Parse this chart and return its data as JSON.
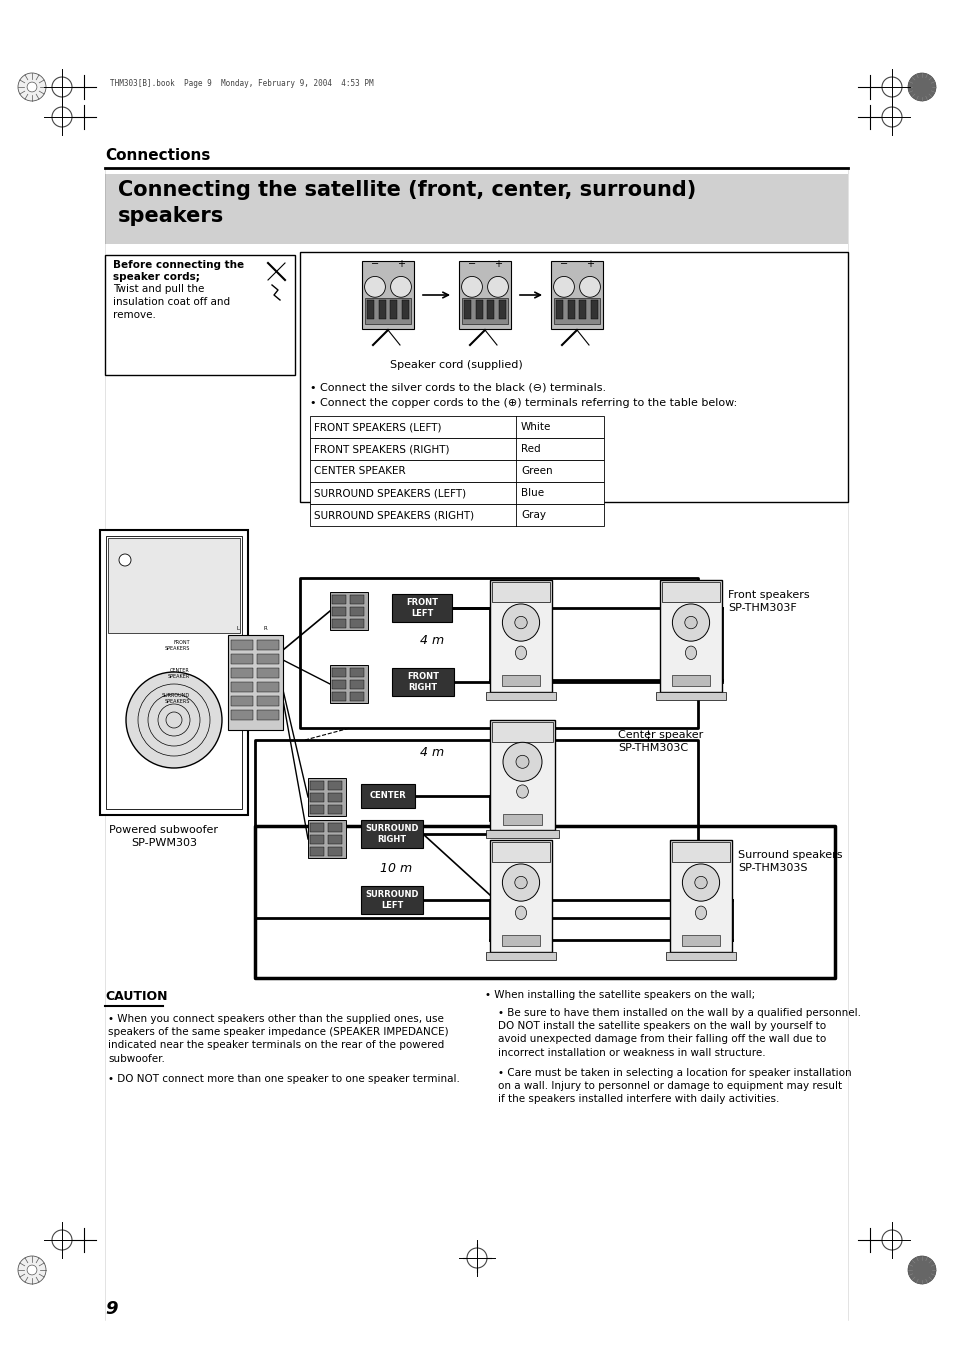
{
  "page_title": "Connections",
  "section_title": "Connecting the satellite (front, center, surround)\nspeakers",
  "header_text": "THM303[B].book  Page 9  Monday, February 9, 2004  4:53 PM",
  "before_connecting_title": "Before connecting the\nspeaker cords;",
  "before_connecting_body": "Twist and pull the\ninsulation coat off and\nremove.",
  "speaker_cord_label": "Speaker cord (supplied)",
  "bullet1": "Connect the silver cords to the black (⊖) terminals.",
  "bullet2": "Connect the copper cords to the (⊕) terminals referring to the table below:",
  "table_rows": [
    [
      "FRONT SPEAKERS (LEFT)",
      "White"
    ],
    [
      "FRONT SPEAKERS (RIGHT)",
      "Red"
    ],
    [
      "CENTER SPEAKER",
      "Green"
    ],
    [
      "SURROUND SPEAKERS (LEFT)",
      "Blue"
    ],
    [
      "SURROUND SPEAKERS (RIGHT)",
      "Gray"
    ]
  ],
  "front_speakers_label": "Front speakers\nSP-THM303F",
  "center_speaker_label": "Center speaker\nSP-THM303C",
  "surround_speakers_label": "Surround speakers\nSP-THM303S",
  "powered_subwoofer_label": "Powered subwoofer\nSP-PWM303",
  "distance_4m_1": "4 m",
  "distance_4m_2": "4 m",
  "distance_10m": "10 m",
  "front_left_label": "FRONT\nLEFT",
  "front_right_label": "FRONT\nRIGHT",
  "center_label": "CENTER",
  "surround_right_label": "SURROUND\nRIGHT",
  "surround_left_label": "SURROUND\nLEFT",
  "caution_title": "CAUTION",
  "caution_left": [
    "When you connect speakers other than the supplied ones, use\nspeakers of the same speaker impedance (SPEAKER IMPEDANCE)\nindicated near the speaker terminals on the rear of the powered\nsubwoofer.",
    "DO NOT connect more than one speaker to one speaker terminal."
  ],
  "caution_right_header": "When installing the satellite speakers on the wall;",
  "caution_right_sub1": "Be sure to have them installed on the wall by a qualified personnel.\nDO NOT install the satellite speakers on the wall by yourself to\navoid unexpected damage from their falling off the wall due to\nincorrect installation or weakness in wall structure.",
  "caution_right_sub2": "Care must be taken in selecting a location for speaker installation\non a wall. Injury to personnel or damage to equipment may result\nif the speakers installed interfere with daily activities.",
  "page_number": "9",
  "bg_color": "#ffffff",
  "section_bg_color": "#d0d0d0",
  "text_color": "#000000"
}
